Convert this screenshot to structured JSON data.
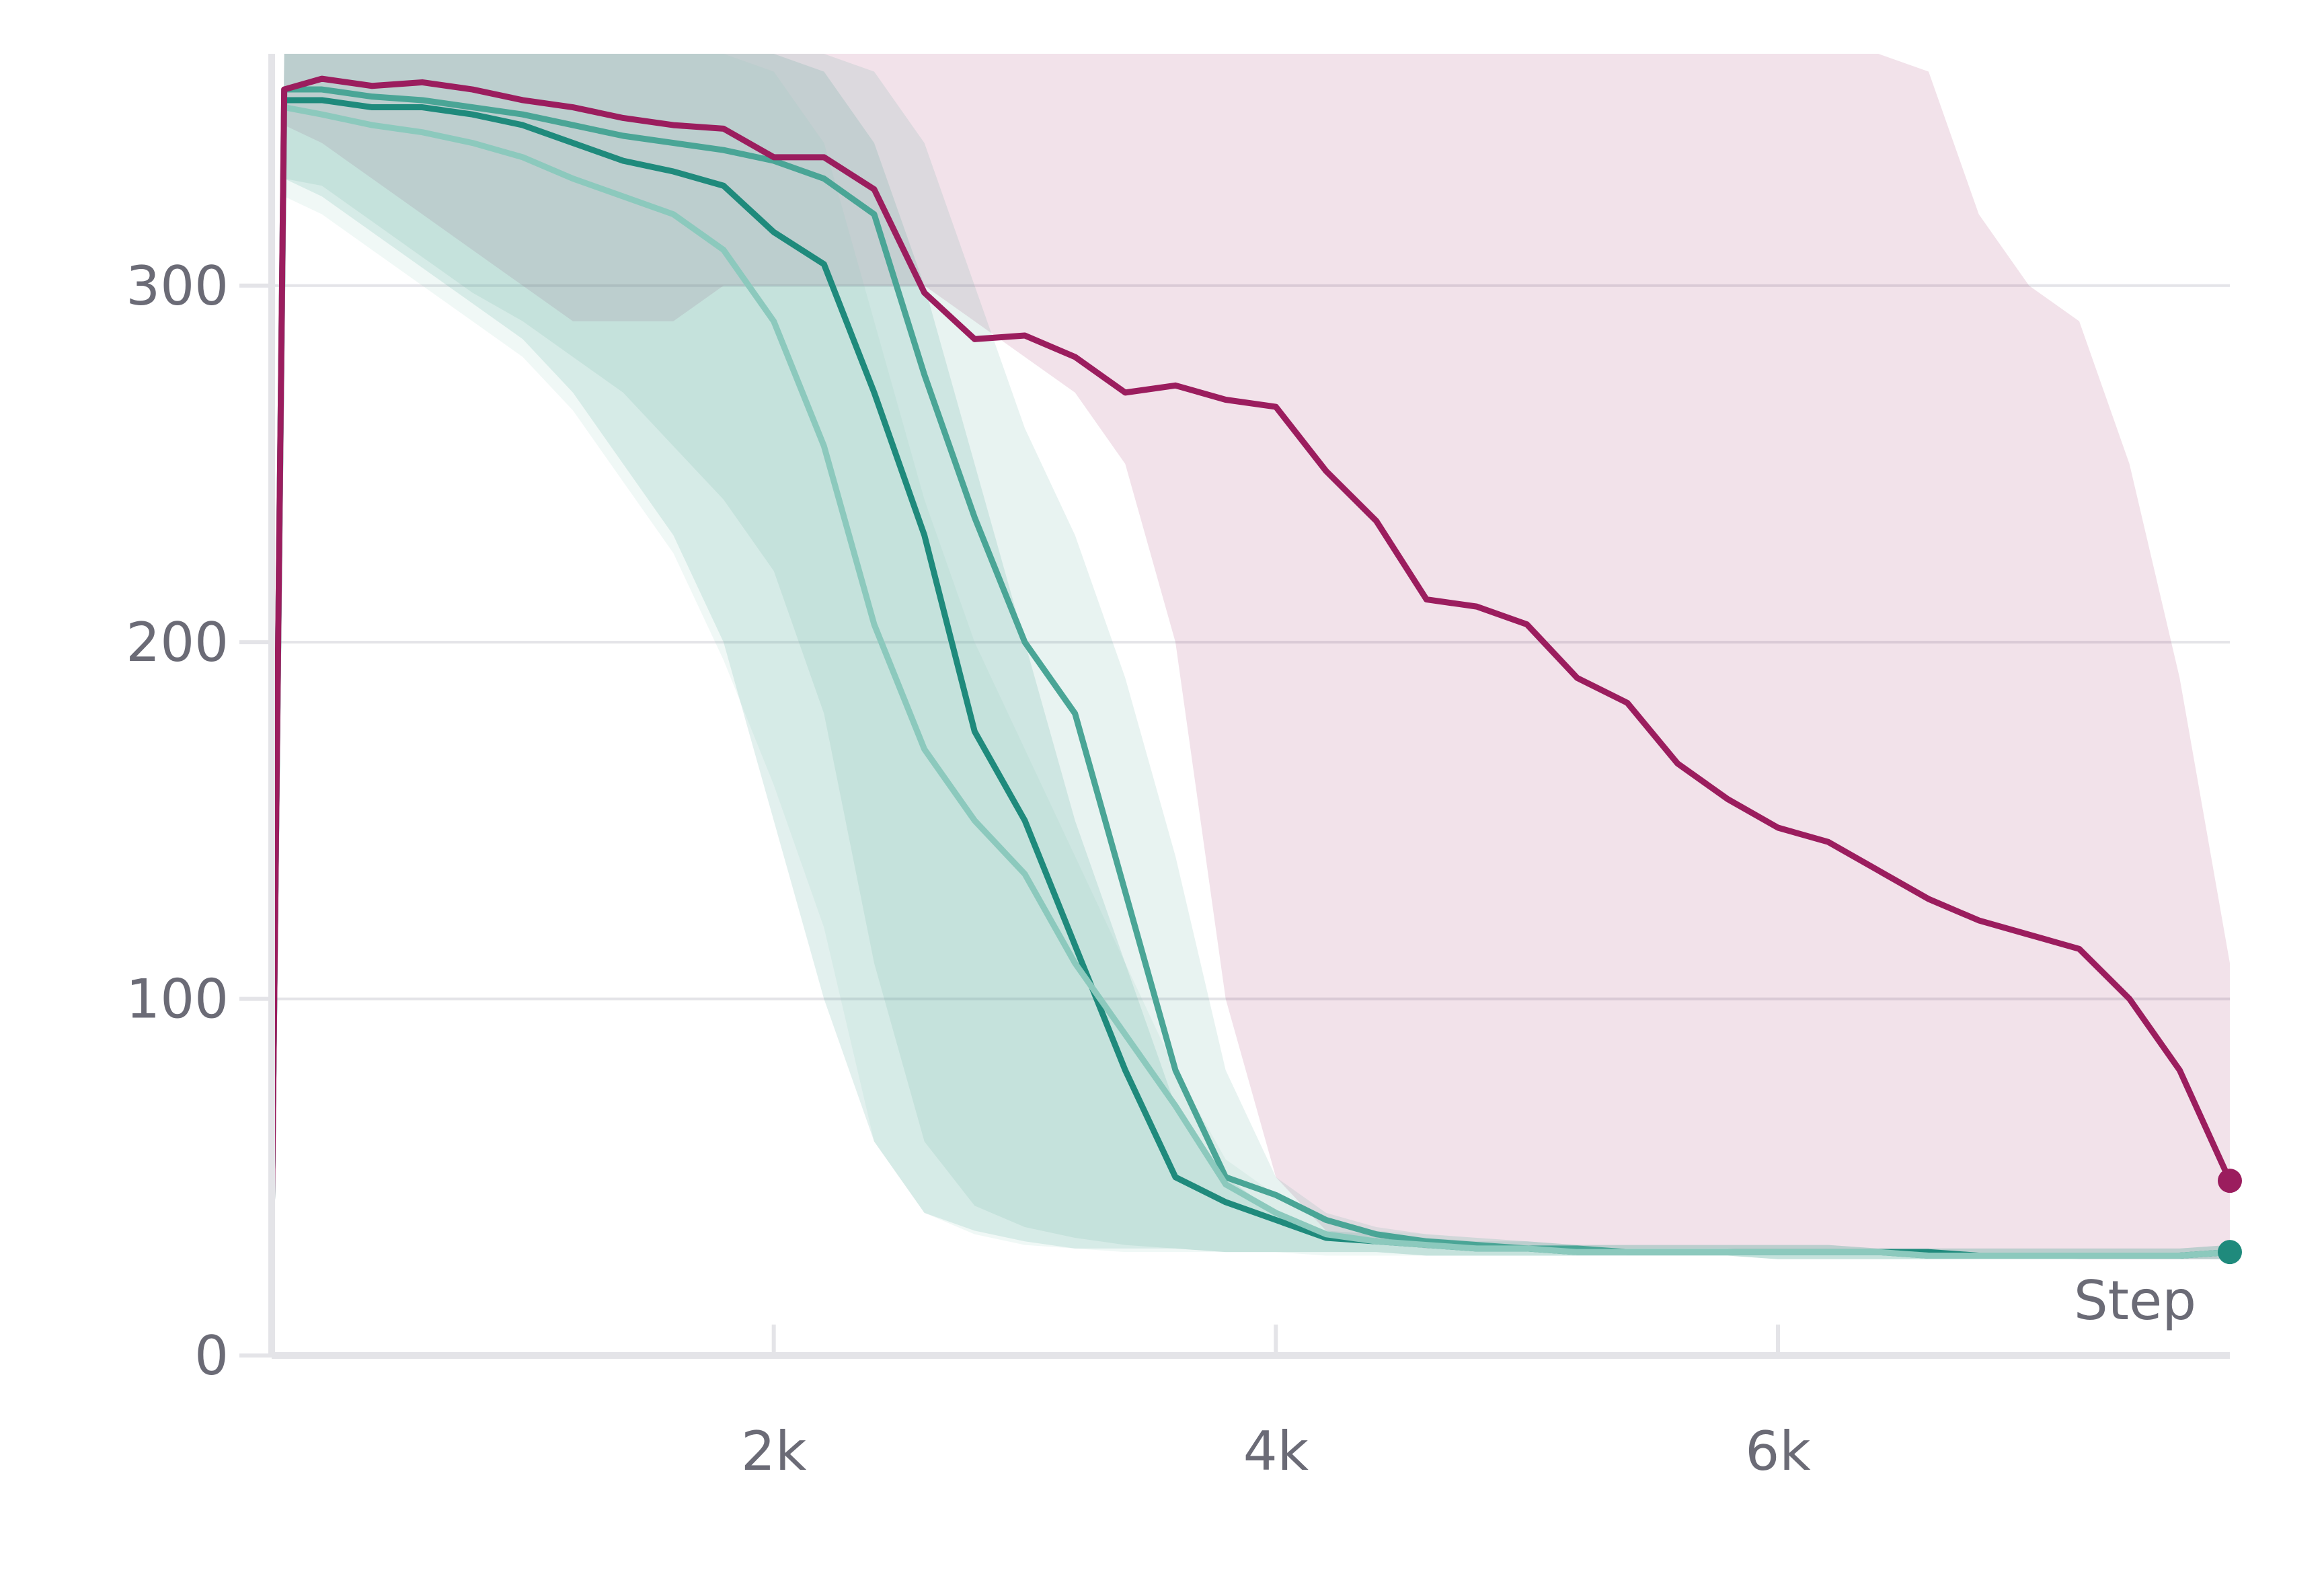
{
  "chart_data": {
    "type": "line",
    "title": "",
    "xlabel": "Step",
    "ylabel": "",
    "xlim": [
      0,
      7800
    ],
    "ylim": [
      0,
      365
    ],
    "x_ticks": [
      {
        "value": 2000,
        "label": "2k"
      },
      {
        "value": 4000,
        "label": "4k"
      },
      {
        "value": 6000,
        "label": "6k"
      }
    ],
    "y_ticks": [
      {
        "value": 0,
        "label": "0"
      },
      {
        "value": 100,
        "label": "100"
      },
      {
        "value": 200,
        "label": "200"
      },
      {
        "value": 300,
        "label": "300"
      }
    ],
    "grid": "horizontal",
    "legend": "none",
    "x": [
      0,
      50,
      200,
      400,
      600,
      800,
      1000,
      1200,
      1400,
      1600,
      1800,
      2000,
      2200,
      2400,
      2600,
      2800,
      3000,
      3200,
      3400,
      3600,
      3800,
      4000,
      4200,
      4400,
      4600,
      4800,
      5000,
      5200,
      5400,
      5600,
      5800,
      6000,
      6200,
      6400,
      6600,
      6800,
      7000,
      7200,
      7400,
      7600,
      7800
    ],
    "series": [
      {
        "color": "#9b1d5e",
        "values": [
          35,
          355,
          358,
          356,
          357,
          355,
          352,
          350,
          347,
          345,
          344,
          336,
          336,
          327,
          298,
          285,
          286,
          280,
          270,
          272,
          268,
          266,
          248,
          234,
          212,
          210,
          205,
          190,
          183,
          166,
          156,
          148,
          144,
          136,
          128,
          122,
          118,
          114,
          100,
          80,
          49
        ],
        "band_low": [
          35,
          345,
          340,
          330,
          320,
          310,
          300,
          290,
          290,
          290,
          300,
          300,
          300,
          300,
          300,
          290,
          280,
          270,
          250,
          200,
          100,
          50,
          35,
          32,
          30,
          30,
          30,
          30,
          30,
          30,
          30,
          29,
          29,
          29,
          28,
          28,
          28,
          27,
          27,
          27,
          27
        ],
        "band_high": [
          35,
          365,
          365,
          365,
          365,
          365,
          365,
          365,
          365,
          365,
          365,
          365,
          365,
          365,
          365,
          365,
          365,
          365,
          365,
          365,
          365,
          365,
          365,
          365,
          365,
          365,
          365,
          365,
          365,
          365,
          365,
          365,
          365,
          365,
          360,
          320,
          300,
          290,
          250,
          190,
          110
        ]
      },
      {
        "color": "#1f8a7c",
        "values": [
          35,
          352,
          352,
          350,
          350,
          348,
          345,
          340,
          335,
          332,
          328,
          315,
          306,
          270,
          230,
          175,
          150,
          115,
          80,
          50,
          43,
          38,
          33,
          32,
          31,
          30,
          30,
          29,
          29,
          29,
          29,
          29,
          29,
          29,
          29,
          28,
          28,
          28,
          28,
          28,
          29
        ],
        "band_low": [
          35,
          330,
          325,
          315,
          305,
          295,
          285,
          270,
          250,
          230,
          200,
          150,
          100,
          60,
          40,
          35,
          32,
          30,
          30,
          30,
          29,
          29,
          29,
          29,
          28,
          28,
          28,
          28,
          28,
          28,
          28,
          27,
          27,
          27,
          27,
          27,
          27,
          27,
          27,
          27,
          27
        ],
        "band_high": [
          35,
          365,
          365,
          365,
          365,
          365,
          365,
          365,
          365,
          365,
          365,
          365,
          360,
          340,
          300,
          250,
          200,
          150,
          110,
          70,
          50,
          40,
          35,
          34,
          33,
          32,
          32,
          31,
          31,
          31,
          31,
          31,
          31,
          30,
          30,
          30,
          30,
          30,
          30,
          30,
          31
        ]
      },
      {
        "color": "#4aa596",
        "values": [
          35,
          355,
          355,
          353,
          352,
          350,
          348,
          345,
          342,
          340,
          338,
          335,
          330,
          320,
          275,
          235,
          200,
          180,
          130,
          80,
          50,
          45,
          38,
          34,
          32,
          31,
          30,
          30,
          29,
          29,
          29,
          29,
          29,
          29,
          28,
          28,
          28,
          28,
          28,
          28,
          29
        ],
        "band_low": [
          35,
          330,
          328,
          318,
          308,
          298,
          290,
          280,
          270,
          255,
          240,
          220,
          180,
          110,
          60,
          42,
          36,
          33,
          31,
          30,
          29,
          29,
          29,
          29,
          28,
          28,
          28,
          28,
          28,
          28,
          28,
          27,
          27,
          27,
          27,
          27,
          27,
          27,
          27,
          27,
          27
        ],
        "band_high": [
          35,
          365,
          365,
          365,
          365,
          365,
          365,
          365,
          365,
          365,
          365,
          365,
          365,
          360,
          340,
          300,
          260,
          230,
          190,
          140,
          80,
          50,
          40,
          36,
          34,
          33,
          32,
          31,
          31,
          31,
          31,
          31,
          31,
          30,
          30,
          30,
          30,
          30,
          30,
          30,
          31
        ]
      },
      {
        "color": "#8cc9bd",
        "values": [
          35,
          350,
          348,
          345,
          343,
          340,
          336,
          330,
          325,
          320,
          310,
          290,
          255,
          205,
          170,
          150,
          135,
          110,
          90,
          70,
          48,
          40,
          34,
          32,
          31,
          30,
          30,
          29,
          29,
          29,
          29,
          29,
          29,
          29,
          28,
          28,
          28,
          28,
          28,
          28,
          29
        ],
        "band_low": [
          35,
          325,
          320,
          310,
          300,
          290,
          280,
          265,
          245,
          225,
          195,
          160,
          120,
          60,
          40,
          34,
          31,
          30,
          29,
          29,
          29,
          29,
          28,
          28,
          28,
          28,
          28,
          28,
          28,
          28,
          28,
          27,
          27,
          27,
          27,
          27,
          27,
          27,
          27,
          27,
          27
        ],
        "band_high": [
          35,
          365,
          365,
          365,
          365,
          365,
          365,
          365,
          365,
          365,
          365,
          360,
          340,
          290,
          240,
          200,
          170,
          140,
          110,
          80,
          55,
          45,
          38,
          35,
          34,
          33,
          32,
          31,
          31,
          31,
          31,
          31,
          31,
          30,
          30,
          30,
          30,
          30,
          30,
          30,
          31
        ]
      }
    ]
  }
}
